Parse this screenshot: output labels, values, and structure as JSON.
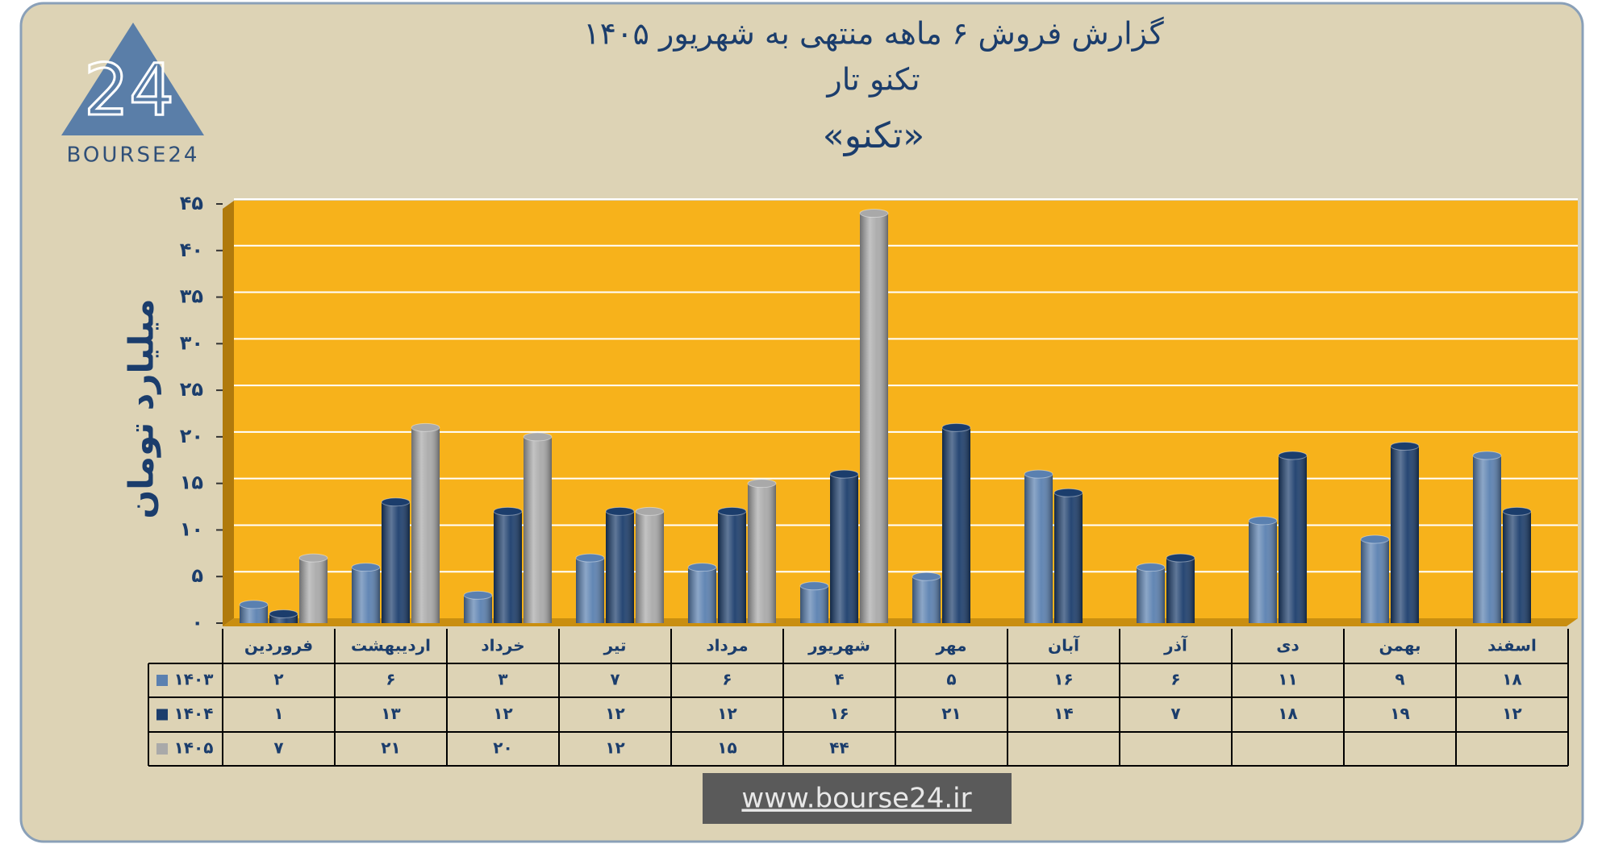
{
  "logo": {
    "mark": "24",
    "name": "BOURSE24"
  },
  "url": "www.bourse24.ir",
  "chart_data": {
    "type": "bar",
    "title": "گزارش  فروش ۶ ماهه منتهی به شهریور ۱۴۰۵",
    "subtitle": "تکنو تار",
    "symbol": "«تکنو»",
    "y_label": "میلیارد تومان",
    "categories": [
      "فروردین",
      "اردیبهشت",
      "خرداد",
      "تیر",
      "مرداد",
      "شهریور",
      "مهر",
      "آبان",
      "آذر",
      "دی",
      "بهمن",
      "اسفند"
    ],
    "series": [
      {
        "name": "۱۴۰۳",
        "color": "#5a80b0",
        "values": [
          2,
          6,
          3,
          7,
          6,
          4,
          5,
          16,
          6,
          11,
          9,
          18
        ],
        "value_labels": [
          "۲",
          "۶",
          "۳",
          "۷",
          "۶",
          "۴",
          "۵",
          "۱۶",
          "۶",
          "۱۱",
          "۹",
          "۱۸"
        ]
      },
      {
        "name": "۱۴۰۴",
        "color": "#1b3d6c",
        "values": [
          1,
          13,
          12,
          12,
          12,
          16,
          21,
          14,
          7,
          18,
          19,
          12
        ],
        "value_labels": [
          "۱",
          "۱۳",
          "۱۲",
          "۱۲",
          "۱۲",
          "۱۶",
          "۲۱",
          "۱۴",
          "۷",
          "۱۸",
          "۱۹",
          "۱۲"
        ]
      },
      {
        "name": "۱۴۰۵",
        "color": "#a9a9a9",
        "values": [
          7,
          21,
          20,
          12,
          15,
          44,
          null,
          null,
          null,
          null,
          null,
          null
        ],
        "value_labels": [
          "۷",
          "۲۱",
          "۲۰",
          "۱۲",
          "۱۵",
          "۴۴",
          null,
          null,
          null,
          null,
          null,
          null
        ]
      }
    ],
    "ylim": [
      0,
      45
    ],
    "yticks": [
      {
        "value": 0,
        "label": "۰"
      },
      {
        "value": 5,
        "label": "۵"
      },
      {
        "value": 10,
        "label": "۱۰"
      },
      {
        "value": 15,
        "label": "۱۵"
      },
      {
        "value": 20,
        "label": "۲۰"
      },
      {
        "value": 25,
        "label": "۲۵"
      },
      {
        "value": 30,
        "label": "۳۰"
      },
      {
        "value": 35,
        "label": "۳۵"
      },
      {
        "value": 40,
        "label": "۴۰"
      },
      {
        "value": 45,
        "label": "۴۵"
      }
    ],
    "grid": true,
    "background": "#f7b21b"
  }
}
